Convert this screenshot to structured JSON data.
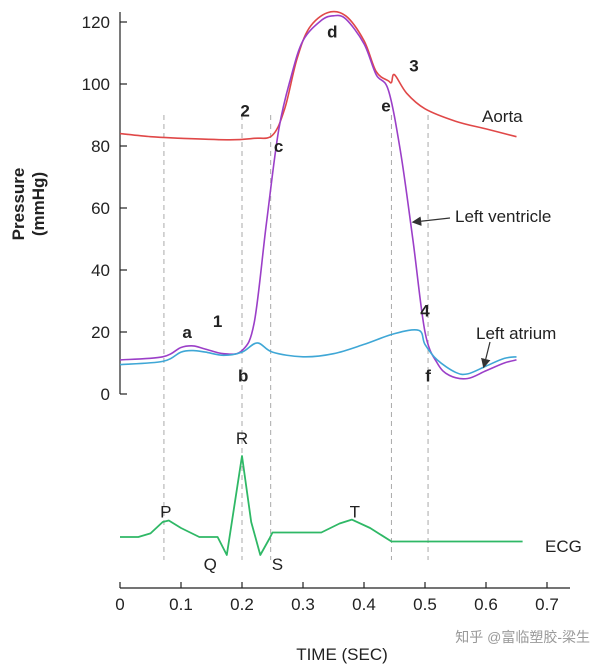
{
  "chart_data": {
    "type": "line",
    "title": "",
    "xlabel": "TIME (SEC)",
    "ylabel_line1": "Pressure",
    "ylabel_line2": "(mmHg)",
    "xlim": [
      0,
      0.7
    ],
    "ylim": [
      0,
      120
    ],
    "xticks": [
      0,
      0.1,
      0.2,
      0.3,
      0.4,
      0.5,
      0.6,
      0.7
    ],
    "xtick_labels": [
      "0",
      "0.1",
      "0.2",
      "0.3",
      "0.4",
      "0.5",
      "0.6",
      "0.7"
    ],
    "yticks": [
      0,
      20,
      40,
      60,
      80,
      100,
      120
    ],
    "ytick_labels": [
      "0",
      "20",
      "40",
      "60",
      "80",
      "100",
      "120"
    ],
    "grid": false,
    "colors": {
      "aorta": "#e04848",
      "ventricle": "#9b3fc8",
      "atrium": "#3fa7d6",
      "ecg": "#2fb866",
      "guide": "#aaaaaa"
    },
    "series": [
      {
        "key": "aorta",
        "name": "Aorta",
        "points": [
          [
            0,
            84
          ],
          [
            0.05,
            83
          ],
          [
            0.1,
            82.5
          ],
          [
            0.18,
            82
          ],
          [
            0.22,
            82.5
          ],
          [
            0.25,
            83.5
          ],
          [
            0.27,
            92
          ],
          [
            0.29,
            108
          ],
          [
            0.31,
            118
          ],
          [
            0.34,
            123
          ],
          [
            0.37,
            122
          ],
          [
            0.4,
            114
          ],
          [
            0.42,
            104
          ],
          [
            0.44,
            101
          ],
          [
            0.445,
            100.5
          ],
          [
            0.45,
            103
          ],
          [
            0.47,
            97
          ],
          [
            0.5,
            92
          ],
          [
            0.55,
            88
          ],
          [
            0.6,
            85.5
          ],
          [
            0.65,
            83
          ]
        ]
      },
      {
        "key": "ventricle",
        "name": "Left ventricle",
        "points": [
          [
            0,
            11
          ],
          [
            0.07,
            12
          ],
          [
            0.1,
            15
          ],
          [
            0.12,
            15.5
          ],
          [
            0.14,
            14.5
          ],
          [
            0.17,
            13
          ],
          [
            0.2,
            14
          ],
          [
            0.22,
            23
          ],
          [
            0.24,
            55
          ],
          [
            0.26,
            85
          ],
          [
            0.28,
            102
          ],
          [
            0.3,
            114
          ],
          [
            0.33,
            120.5
          ],
          [
            0.35,
            122
          ],
          [
            0.37,
            121
          ],
          [
            0.4,
            113
          ],
          [
            0.42,
            103
          ],
          [
            0.44,
            98
          ],
          [
            0.46,
            78
          ],
          [
            0.48,
            50
          ],
          [
            0.5,
            20
          ],
          [
            0.52,
            10
          ],
          [
            0.54,
            6
          ],
          [
            0.57,
            5
          ],
          [
            0.6,
            7.5
          ],
          [
            0.63,
            10
          ],
          [
            0.65,
            11
          ]
        ]
      },
      {
        "key": "atrium",
        "name": "Left atrium",
        "points": [
          [
            0,
            9.5
          ],
          [
            0.07,
            10.5
          ],
          [
            0.1,
            13.5
          ],
          [
            0.12,
            14
          ],
          [
            0.14,
            13.5
          ],
          [
            0.17,
            12.5
          ],
          [
            0.2,
            13.5
          ],
          [
            0.225,
            16.5
          ],
          [
            0.25,
            13.5
          ],
          [
            0.3,
            12
          ],
          [
            0.35,
            13
          ],
          [
            0.4,
            16
          ],
          [
            0.45,
            19.5
          ],
          [
            0.49,
            20.5
          ],
          [
            0.5,
            16
          ],
          [
            0.52,
            11
          ],
          [
            0.55,
            7
          ],
          [
            0.57,
            6.5
          ],
          [
            0.6,
            9
          ],
          [
            0.63,
            11.5
          ],
          [
            0.65,
            12
          ]
        ]
      }
    ],
    "ecg": {
      "name": "ECG",
      "points": [
        [
          0,
          0
        ],
        [
          0.03,
          0
        ],
        [
          0.05,
          0.12
        ],
        [
          0.07,
          0.5
        ],
        [
          0.08,
          0.55
        ],
        [
          0.1,
          0.3
        ],
        [
          0.13,
          0
        ],
        [
          0.16,
          0
        ],
        [
          0.175,
          -0.6
        ],
        [
          0.2,
          2.7
        ],
        [
          0.215,
          0.5
        ],
        [
          0.23,
          -0.6
        ],
        [
          0.245,
          -0.05
        ],
        [
          0.25,
          0.15
        ],
        [
          0.33,
          0.15
        ],
        [
          0.36,
          0.45
        ],
        [
          0.38,
          0.58
        ],
        [
          0.41,
          0.3
        ],
        [
          0.445,
          -0.15
        ],
        [
          0.5,
          -0.15
        ],
        [
          0.66,
          -0.15
        ]
      ],
      "waves": [
        {
          "label": "P",
          "x": 0.075,
          "v": 0.85
        },
        {
          "label": "Q",
          "x": 0.148,
          "v": -0.9
        },
        {
          "label": "R",
          "x": 0.2,
          "v": 3.3
        },
        {
          "label": "S",
          "x": 0.258,
          "v": -0.9
        },
        {
          "label": "T",
          "x": 0.385,
          "v": 0.85
        }
      ]
    },
    "guides": [
      0.072,
      0.2,
      0.247,
      0.445,
      0.505
    ],
    "markers": [
      {
        "label": "1",
        "x": 0.16,
        "y": 23.5
      },
      {
        "label": "2",
        "x": 0.205,
        "y": 91.5
      },
      {
        "label": "3",
        "x": 0.482,
        "y": 106
      },
      {
        "label": "4",
        "x": 0.5,
        "y": 27
      },
      {
        "label": "a",
        "x": 0.11,
        "y": 20
      },
      {
        "label": "b",
        "x": 0.202,
        "y": 6
      },
      {
        "label": "c",
        "x": 0.26,
        "y": 80
      },
      {
        "label": "d",
        "x": 0.348,
        "y": 117
      },
      {
        "label": "e",
        "x": 0.436,
        "y": 93
      },
      {
        "label": "f",
        "x": 0.505,
        "y": 6
      }
    ],
    "labels": {
      "aorta": "Aorta",
      "ventricle": "Left ventricle",
      "atrium": "Left atrium",
      "ecg": "ECG"
    }
  },
  "watermark": "知乎 @富临塑胶-梁生"
}
